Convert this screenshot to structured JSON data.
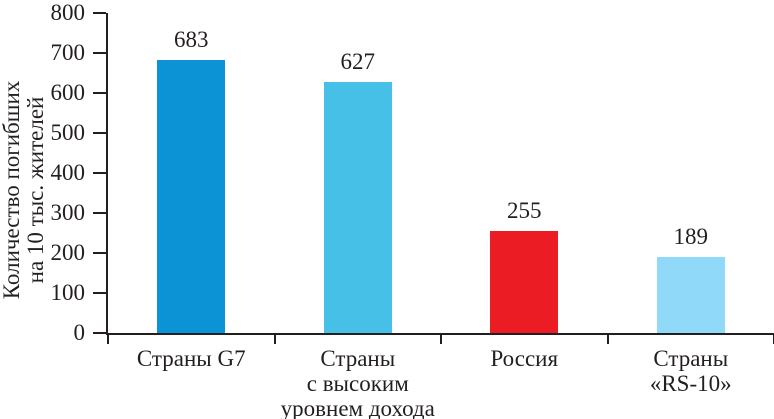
{
  "chart_data": {
    "type": "bar",
    "title": "",
    "ylabel": "Количество погибших\nна 10 тыс. жителей",
    "xlabel": "",
    "categories": [
      "Страны G7",
      "Страны\nс высоким\nуровнем дохода",
      "Россия",
      "Страны\n«RS-10»"
    ],
    "values": [
      683,
      627,
      255,
      189
    ],
    "value_labels": [
      "683",
      "627",
      "255",
      "189"
    ],
    "bar_colors": [
      "#0b93d5",
      "#47c0e8",
      "#ec1c24",
      "#90d9f8"
    ],
    "yticks": [
      0,
      100,
      200,
      300,
      400,
      500,
      600,
      700,
      800
    ],
    "ylim": [
      0,
      800
    ],
    "grid": false,
    "legend": false,
    "text_color": "#231f20",
    "axis_color": "#231f20",
    "background_color": "#ffffff"
  }
}
